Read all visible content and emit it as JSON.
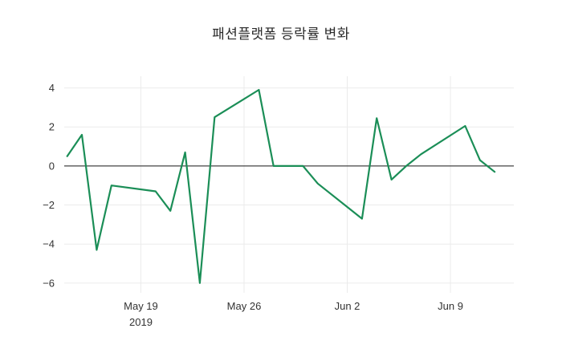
{
  "chart_data": {
    "type": "line",
    "title": "패션플랫폼 등락률 변화",
    "xlabel": "",
    "ylabel": "",
    "line_color": "#1b8e57",
    "grid": true,
    "legend": "none",
    "x_origin": "2019-05-19",
    "xlim_days": [
      -5.2,
      25.3
    ],
    "ylim": [
      -6.5,
      4.6
    ],
    "yticks": [
      {
        "value": 4,
        "label": "4"
      },
      {
        "value": 2,
        "label": "2"
      },
      {
        "value": 0,
        "label": "0"
      },
      {
        "value": -2,
        "label": "−2"
      },
      {
        "value": -4,
        "label": "−4"
      },
      {
        "value": -6,
        "label": "−6"
      }
    ],
    "xticks": [
      {
        "date": "2019-05-19",
        "label": "May 19",
        "sublabel": "2019"
      },
      {
        "date": "2019-05-26",
        "label": "May 26",
        "sublabel": ""
      },
      {
        "date": "2019-06-02",
        "label": "Jun 2",
        "sublabel": ""
      },
      {
        "date": "2019-06-09",
        "label": "Jun 9",
        "sublabel": ""
      }
    ],
    "points": [
      {
        "date": "2019-05-14",
        "value": 0.5
      },
      {
        "date": "2019-05-15",
        "value": 1.6
      },
      {
        "date": "2019-05-16",
        "value": -4.3
      },
      {
        "date": "2019-05-17",
        "value": -1.0
      },
      {
        "date": "2019-05-20",
        "value": -1.3
      },
      {
        "date": "2019-05-21",
        "value": -2.3
      },
      {
        "date": "2019-05-22",
        "value": 0.7
      },
      {
        "date": "2019-05-23",
        "value": -6.0
      },
      {
        "date": "2019-05-24",
        "value": 2.5
      },
      {
        "date": "2019-05-27",
        "value": 3.9
      },
      {
        "date": "2019-05-28",
        "value": 0.0
      },
      {
        "date": "2019-05-29",
        "value": 0.0
      },
      {
        "date": "2019-05-30",
        "value": 0.0
      },
      {
        "date": "2019-05-31",
        "value": -0.9
      },
      {
        "date": "2019-06-03",
        "value": -2.7
      },
      {
        "date": "2019-06-04",
        "value": 2.45
      },
      {
        "date": "2019-06-05",
        "value": -0.7
      },
      {
        "date": "2019-06-06",
        "value": 0.0
      },
      {
        "date": "2019-06-07",
        "value": 0.6
      },
      {
        "date": "2019-06-10",
        "value": 2.05
      },
      {
        "date": "2019-06-11",
        "value": 0.3
      },
      {
        "date": "2019-06-12",
        "value": -0.3
      }
    ]
  }
}
